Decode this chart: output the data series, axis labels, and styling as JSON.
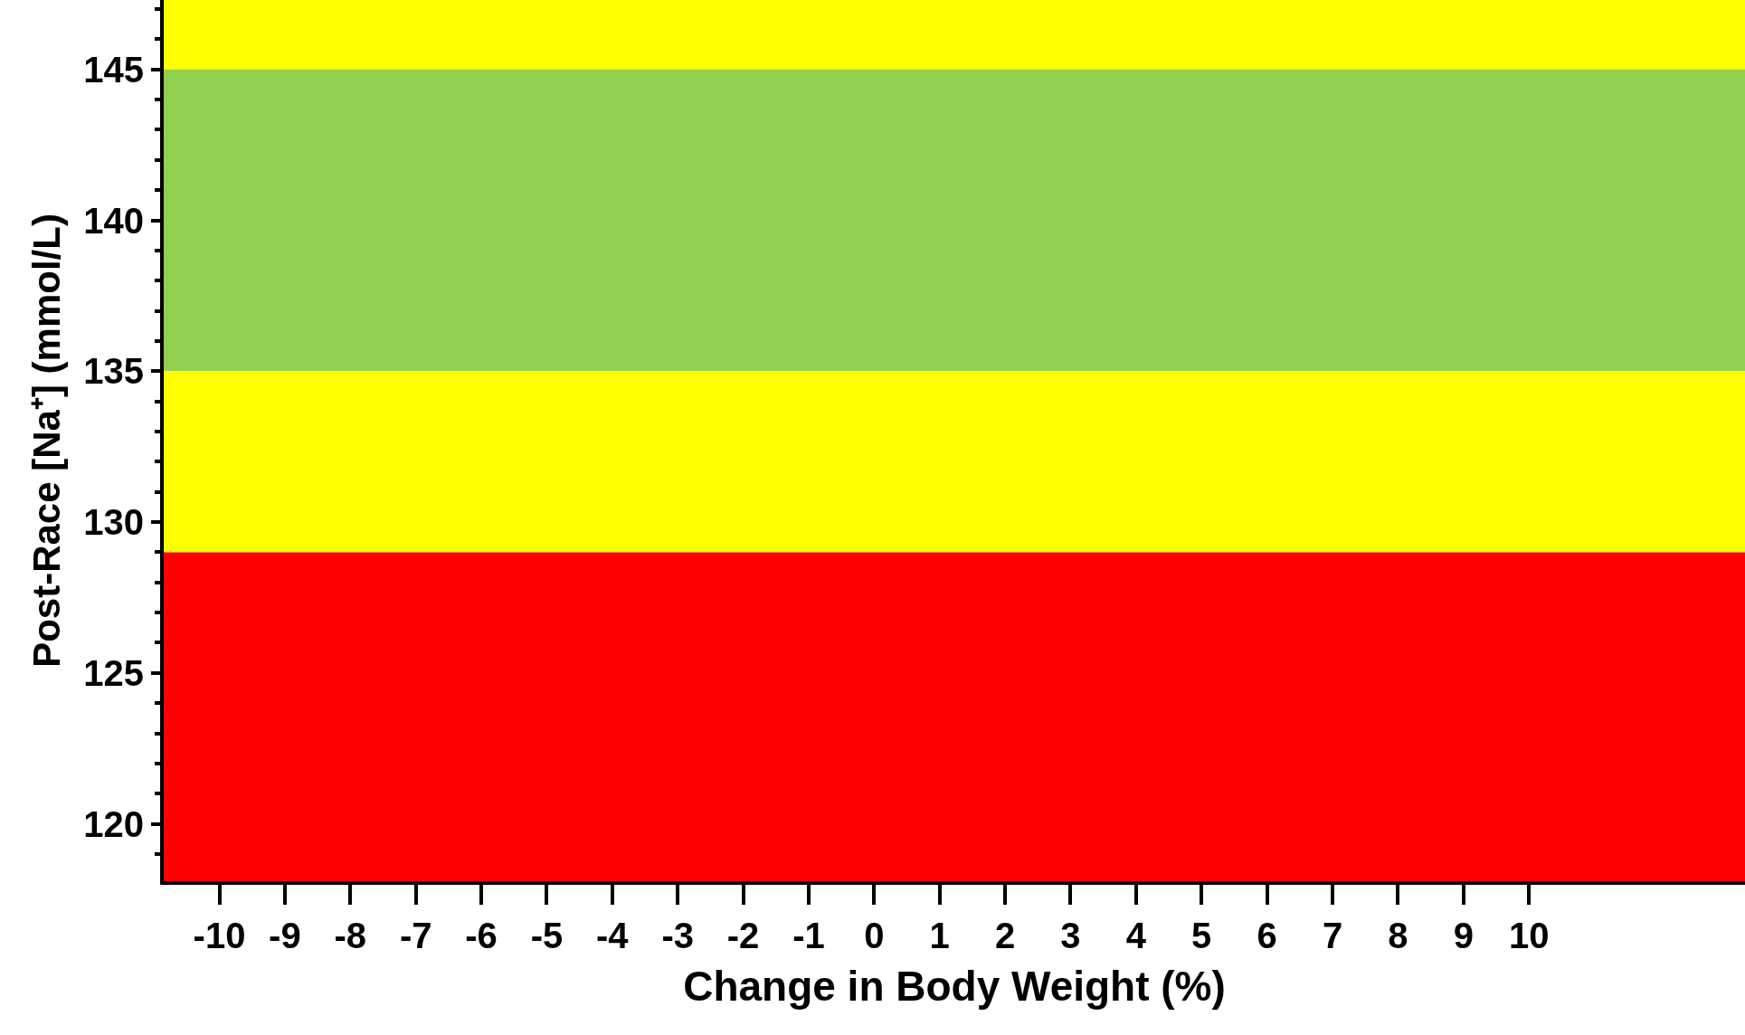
{
  "chart_data": {
    "type": "scatter",
    "xlabel": "Change in Body Weight (%)",
    "ylabel": "Post-Race [Na⁺] (mmol/L)",
    "xlim": [
      -10.85,
      13.3
    ],
    "xticks": [
      -10,
      -9,
      -8,
      -7,
      -6,
      -5,
      -4,
      -3,
      -2,
      -1,
      0,
      1,
      2,
      3,
      4,
      5,
      6,
      7,
      8,
      9,
      10
    ],
    "ylim": [
      118.1,
      147.3
    ],
    "yticks": [
      120,
      125,
      130,
      135,
      140,
      145
    ],
    "grid": false,
    "bands": [
      {
        "axis": "y",
        "from": 145,
        "to": 147.3,
        "color": "#ffff00"
      },
      {
        "axis": "y",
        "from": 135,
        "to": 145,
        "color": "#92d050"
      },
      {
        "axis": "y",
        "from": 129,
        "to": 135,
        "color": "#ffff00"
      },
      {
        "axis": "y",
        "from": 118.1,
        "to": 129,
        "color": "#ff0000"
      }
    ]
  }
}
